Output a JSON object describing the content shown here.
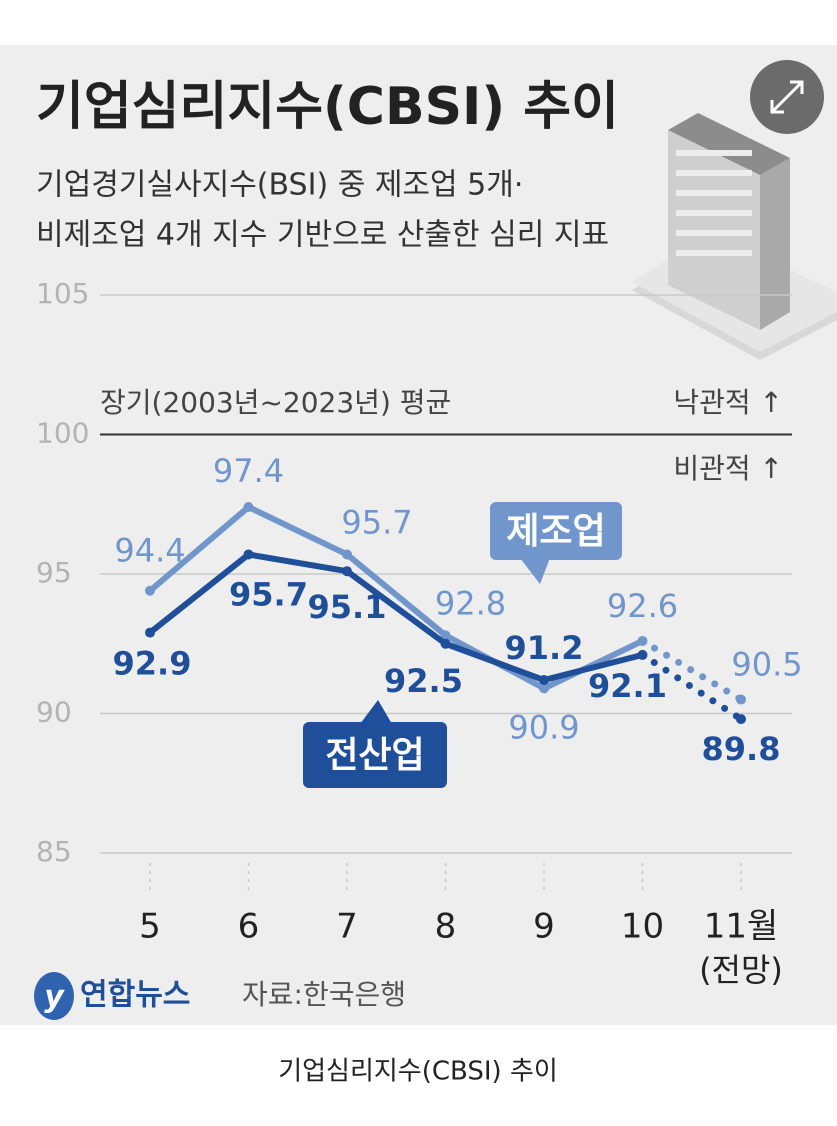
{
  "chart_data": {
    "type": "line",
    "title": "기업심리지수(CBSI) 추이",
    "subtitle": [
      "기업경기실사지수(BSI) 중 제조업 5개·",
      "비제조업 4개 지수 기반으로 산출한 심리 지표"
    ],
    "categories": [
      "5",
      "6",
      "7",
      "8",
      "9",
      "10",
      "11월"
    ],
    "category_note": "(전망)",
    "series": [
      {
        "name": "제조업",
        "color": "#7096cc",
        "values": [
          94.4,
          97.4,
          95.7,
          92.8,
          90.9,
          92.6,
          90.5
        ]
      },
      {
        "name": "전산업",
        "color": "#1f4f99",
        "values": [
          92.9,
          95.7,
          95.1,
          92.5,
          91.2,
          92.1,
          89.8
        ]
      }
    ],
    "ylim": [
      85,
      105
    ],
    "yticks": [
      85,
      90,
      95,
      100,
      105
    ],
    "grid": true,
    "reference_line": {
      "value": 100,
      "label": "장기(2003년~2023년) 평균"
    },
    "optimistic_label": "낙관적 ↑",
    "pessimistic_label": "비관적 ↑",
    "source": "자료:한국은행",
    "logo": "연합뉴스"
  },
  "caption": "기업심리지수(CBSI) 추이"
}
